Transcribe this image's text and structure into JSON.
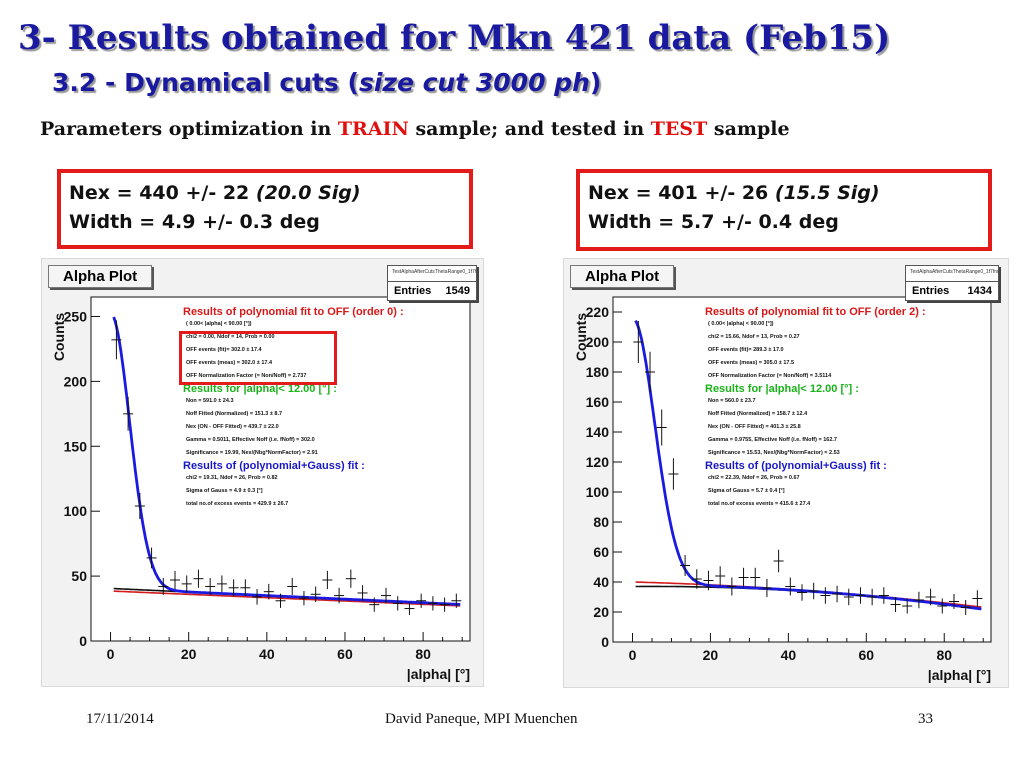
{
  "slide": {
    "title": "3- Results obtained for Mkn 421 data (Feb15)",
    "subtitle_plain": "3.2 - Dynamical cuts (",
    "subtitle_italic": "size cut 3000 ph",
    "subtitle_close": ")",
    "params": {
      "p1": "Parameters optimization in ",
      "train": "TRAIN",
      "p2": " sample; and tested in ",
      "test": "TEST",
      "p3": " sample"
    },
    "footer": {
      "date": "17/11/2014",
      "author": "David Paneque, MPI Muenchen",
      "page": "33"
    },
    "colors": {
      "title": "#1a1aa0",
      "highlight_red": "#e01010"
    }
  },
  "chart_data": [
    {
      "type": "scatter",
      "panel_title": "Alpha Plot",
      "stats_name": "TestAlphaAfterCutsThetaRange0_1f7fnnRed",
      "entries_label": "Entries",
      "entries": "1549",
      "xlabel": "|alpha|   [°]",
      "ylabel": "Counts",
      "xlim": [
        -5,
        92
      ],
      "ylim": [
        0,
        265
      ],
      "xticks": [
        "0",
        "20",
        "40",
        "60",
        "80"
      ],
      "yticks": [
        "0",
        "50",
        "100",
        "150",
        "200",
        "250"
      ],
      "result_line1_a": "Nex = 440 +/-  22 ",
      "result_line1_b": "(20.0 Sig)",
      "result_line2": "Width = 4.9 +/- 0.3 deg",
      "annotations": {
        "off_fit_title": "Results of polynomial fit to OFF (order  0) :",
        "off_fit_lines": [
          "(  0.00< |alpha| < 90.00 [°])",
          "chi2 =    0.00,  Ndof =  14,  Prob =  0.00",
          "OFF events (fit)=    302.0 ±    17.4",
          "OFF events (meas) =    302.0 ±    17.4",
          "OFF Normalization Factor (= Non/Noff) = 2.737"
        ],
        "signal_title": "Results for |alpha|<  12.00 [°] :",
        "signal_lines": [
          "Non =    591.0 ±    24.3",
          "Noff Fitted (Normalized) =    151.3 ±    8.7",
          "Nex (ON - OFF Fitted) =    439.7 ±    22.0",
          "Gamma = 0.5011,  Effective Noff (i.e. fNoff) = 302.0",
          "Significance = 19.99,   Nex/(Nbg*NormFactor) =  2.91"
        ],
        "gauss_title": "Results of (polynomial+Gauss)  fit  :",
        "gauss_lines": [
          "chi2 =   19.31,  Ndof =  26,  Prob =  0.82",
          "Sigma of Gauss  =    4.9  ±    0.3  [°]",
          "total no.of excess events =    429.9 ±    26.7"
        ]
      },
      "series": [
        {
          "name": "data",
          "x": [
            1.5,
            4.5,
            7.5,
            10.5,
            13.5,
            16.5,
            19.5,
            22.5,
            25.5,
            28.5,
            31.5,
            34.5,
            37.5,
            40.5,
            43.5,
            46.5,
            49.5,
            52.5,
            55.5,
            58.5,
            61.5,
            64.5,
            67.5,
            70.5,
            73.5,
            76.5,
            79.5,
            82.5,
            85.5,
            88.5
          ],
          "y": [
            232,
            175,
            104,
            64,
            42,
            47,
            44,
            48,
            42,
            44,
            41,
            41,
            34,
            38,
            31,
            42,
            33,
            36,
            47,
            35,
            48,
            37,
            28,
            35,
            29,
            25,
            31,
            29,
            28,
            31
          ],
          "yerr": [
            15,
            13,
            10,
            8,
            6.5,
            7,
            6.5,
            7,
            6.5,
            6.5,
            6.5,
            6.5,
            6,
            6,
            5.5,
            6.5,
            5.5,
            6,
            7,
            6,
            7,
            6,
            5.5,
            6,
            5.5,
            5,
            5.5,
            5.5,
            5.5,
            5.5
          ]
        }
      ],
      "fits": {
        "off_poly": {
          "color": "#d41a1a",
          "coeffs": [
            38.5,
            -0.128
          ]
        },
        "background": {
          "color": "#111111",
          "coeffs": [
            40.5,
            -0.138
          ]
        },
        "poly_gauss": {
          "color": "#1a1ae0",
          "amp": 212,
          "sigma": 4.9,
          "coeffs": [
            40.5,
            -0.138
          ]
        }
      }
    },
    {
      "type": "scatter",
      "panel_title": "Alpha Plot",
      "stats_name": "TestAlphaAfterCutsThetaRange0_1f7fnnRed",
      "entries_label": "Entries",
      "entries": "1434",
      "xlabel": "|alpha|   [°]",
      "ylabel": "Counts",
      "xlim": [
        -5,
        92
      ],
      "ylim": [
        0,
        230
      ],
      "xticks": [
        "0",
        "20",
        "40",
        "60",
        "80"
      ],
      "yticks": [
        "0",
        "20",
        "40",
        "60",
        "80",
        "100",
        "120",
        "140",
        "160",
        "180",
        "200",
        "220"
      ],
      "result_line1_a": "Nex = 401 +/-  26 ",
      "result_line1_b": "(15.5 Sig)",
      "result_line2": "Width = 5.7 +/- 0.4 deg",
      "annotations": {
        "off_fit_title": "Results of polynomial fit to OFF (order  2) :",
        "off_fit_lines": [
          "(  0.00< |alpha| < 90.00 [°])",
          "chi2 =   15.66,  Ndof =  13,  Prob =  0.27",
          "OFF events (fit)=    289.3 ±    17.0",
          "OFF events (meas) =    305.0 ±    17.5",
          "OFF Normalization Factor (= Non/Noff) = 3.5114"
        ],
        "signal_title": "Results for |alpha|<  12.00 [°] :",
        "signal_lines": [
          "Non =    560.0 ±    23.7",
          "Noff Fitted (Normalized) =    158.7 ±    12.4",
          "Nex (ON - OFF Fitted) =    401.3 ±    25.8",
          "Gamma = 0.9755,  Effective Noff (i.e. fNoff) = 162.7",
          "Significance = 15.53,   Nex/(Nbg*NormFactor) =  2.53"
        ],
        "gauss_title": "Results of (polynomial+Gauss)  fit  :",
        "gauss_lines": [
          "chi2 =   22.39,  Ndof =  26,  Prob =  0.67",
          "Sigma of Gauss  =    5.7  ±    0.4  [°]",
          "total no.of excess events =    415.6 ±    27.4"
        ]
      },
      "series": [
        {
          "name": "data",
          "x": [
            1.5,
            4.5,
            7.5,
            10.5,
            13.5,
            16.5,
            19.5,
            22.5,
            25.5,
            28.5,
            31.5,
            34.5,
            37.5,
            40.5,
            43.5,
            46.5,
            49.5,
            52.5,
            55.5,
            58.5,
            61.5,
            64.5,
            67.5,
            70.5,
            73.5,
            76.5,
            79.5,
            82.5,
            85.5,
            88.5
          ],
          "y": [
            200,
            180,
            143,
            112,
            51,
            42,
            41,
            44,
            37,
            43,
            43,
            36,
            54,
            37,
            33,
            34,
            31,
            32,
            30,
            31,
            30,
            31,
            25,
            24,
            28,
            30,
            24,
            27,
            23,
            29
          ],
          "yerr": [
            14,
            13.5,
            12,
            10.5,
            7,
            6.5,
            6.5,
            6.5,
            6,
            6.5,
            6.5,
            6,
            7.5,
            6,
            5.5,
            5.5,
            5.5,
            5.5,
            5.5,
            5.5,
            5.5,
            5.5,
            5,
            5,
            5.5,
            5.5,
            5,
            5,
            5,
            5.5
          ]
        }
      ],
      "fits": {
        "off_poly": {
          "color": "#d41a1a",
          "coeffs": [
            40,
            -0.07,
            -0.0013
          ]
        },
        "background": {
          "color": "#111111",
          "coeffs": [
            37,
            0.02,
            -0.0021
          ]
        },
        "poly_gauss": {
          "color": "#1a1ae0",
          "amp": 178,
          "sigma": 5.7,
          "coeffs": [
            38,
            0.0,
            -0.002
          ]
        }
      }
    }
  ]
}
